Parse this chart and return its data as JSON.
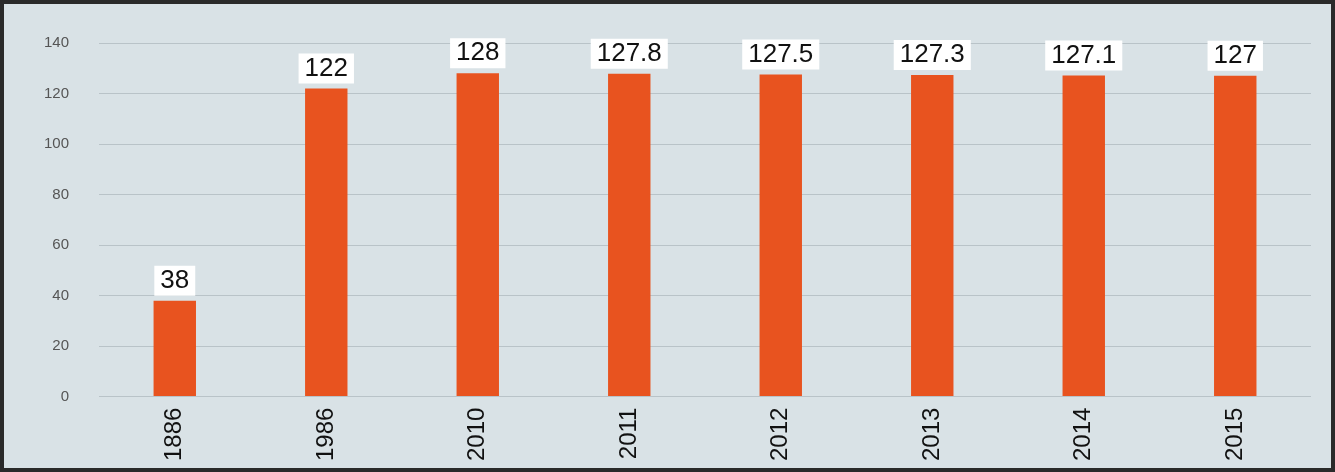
{
  "chart_data": {
    "type": "bar",
    "categories": [
      "1886",
      "1986",
      "2010",
      "2011",
      "2012",
      "2013",
      "2014",
      "2015"
    ],
    "values": [
      38,
      122,
      128,
      127.8,
      127.5,
      127.3,
      127.1,
      127
    ],
    "color": "#e8531f",
    "ylim": [
      0,
      140
    ],
    "yticks": [
      0,
      20,
      40,
      60,
      80,
      100,
      120,
      140
    ],
    "grid": "y",
    "data_labels": true,
    "legend": false
  }
}
